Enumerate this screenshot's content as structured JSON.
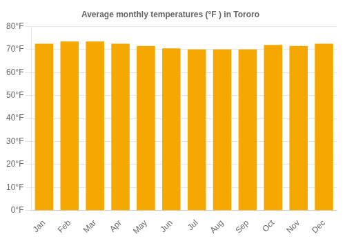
{
  "chart_data": {
    "type": "bar",
    "title": "Average monthly temperatures (°F ) in Tororo",
    "categories": [
      "Jan",
      "Feb",
      "Mar",
      "Apr",
      "May",
      "Jun",
      "Jul",
      "Aug",
      "Sep",
      "Oct",
      "Nov",
      "Dec"
    ],
    "values": [
      72.5,
      73.5,
      73.5,
      72.5,
      71.5,
      70.5,
      70.0,
      70.0,
      70.0,
      72.0,
      71.5,
      72.5
    ],
    "color": "#F5A800",
    "ylim": [
      0,
      80
    ],
    "yticks": [
      {
        "value": 0,
        "label": "0°F"
      },
      {
        "value": 10,
        "label": "10°F"
      },
      {
        "value": 20,
        "label": "20°F"
      },
      {
        "value": 30,
        "label": "30°F"
      },
      {
        "value": 40,
        "label": "40°F"
      },
      {
        "value": 50,
        "label": "50°F"
      },
      {
        "value": 60,
        "label": "60°F"
      },
      {
        "value": 70,
        "label": "70°F"
      },
      {
        "value": 80,
        "label": "80°F"
      }
    ],
    "grid": true
  }
}
